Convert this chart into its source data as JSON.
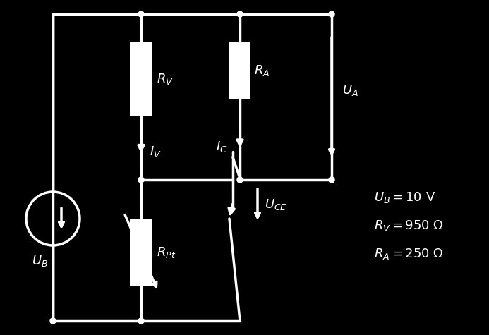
{
  "bg_color": "#000000",
  "fg_color": "#ffffff",
  "figsize": [
    6.93,
    4.75
  ],
  "dpi": 100,
  "annotations": {
    "UB": "U_B = 10 V",
    "RV": "R_V = 950 Ω",
    "RA": "R_A = 250 Ω"
  },
  "labels": {
    "RV": "R_V",
    "RA": "R_A",
    "RPt": "R_Pt",
    "IV": "I_V",
    "IC": "I_C",
    "UCE": "U_CE",
    "UA": "U_A",
    "UB": "U_B"
  }
}
